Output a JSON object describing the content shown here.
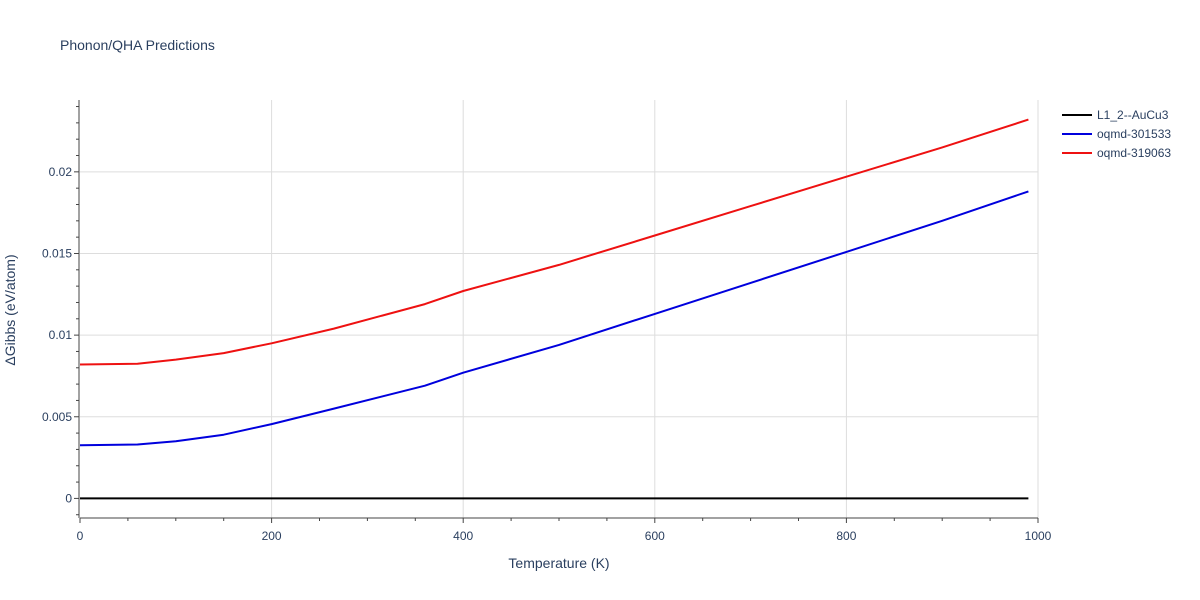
{
  "chart_data": {
    "type": "line",
    "title": "Phonon/QHA Predictions",
    "xlabel": "Temperature (K)",
    "ylabel": "ΔGibbs (eV/atom)",
    "xlim": [
      0,
      1000
    ],
    "ylim": [
      -0.0012,
      0.0244
    ],
    "x_ticks": [
      0,
      200,
      400,
      600,
      800,
      1000
    ],
    "x_tick_labels": [
      "0",
      "200",
      "400",
      "600",
      "800",
      "1000"
    ],
    "y_ticks": [
      0,
      0.005,
      0.01,
      0.015,
      0.02
    ],
    "y_tick_labels": [
      "0",
      "0.005",
      "0.01",
      "0.015",
      "0.02"
    ],
    "grid": true,
    "legend_position": "top-right",
    "series": [
      {
        "name": "L1_2--AuCu3",
        "color": "#000000",
        "x": [
          0,
          100,
          200,
          300,
          400,
          500,
          600,
          700,
          800,
          900,
          990
        ],
        "y": [
          0,
          0,
          0,
          0,
          0,
          0,
          0,
          0,
          0,
          0,
          0
        ]
      },
      {
        "name": "oqmd-301533",
        "color": "#0000dd",
        "x": [
          0,
          60,
          100,
          150,
          200,
          265,
          360,
          400,
          500,
          600,
          700,
          800,
          900,
          990
        ],
        "y": [
          0.00325,
          0.0033,
          0.0035,
          0.0039,
          0.00455,
          0.0055,
          0.0069,
          0.0077,
          0.0094,
          0.0113,
          0.0132,
          0.0151,
          0.017,
          0.0188
        ]
      },
      {
        "name": "oqmd-319063",
        "color": "#ee1111",
        "x": [
          0,
          60,
          100,
          150,
          200,
          265,
          360,
          400,
          500,
          600,
          700,
          800,
          900,
          990
        ],
        "y": [
          0.0082,
          0.00825,
          0.0085,
          0.0089,
          0.0095,
          0.0104,
          0.0119,
          0.0127,
          0.0143,
          0.0161,
          0.0179,
          0.0197,
          0.0215,
          0.0232
        ]
      }
    ]
  }
}
